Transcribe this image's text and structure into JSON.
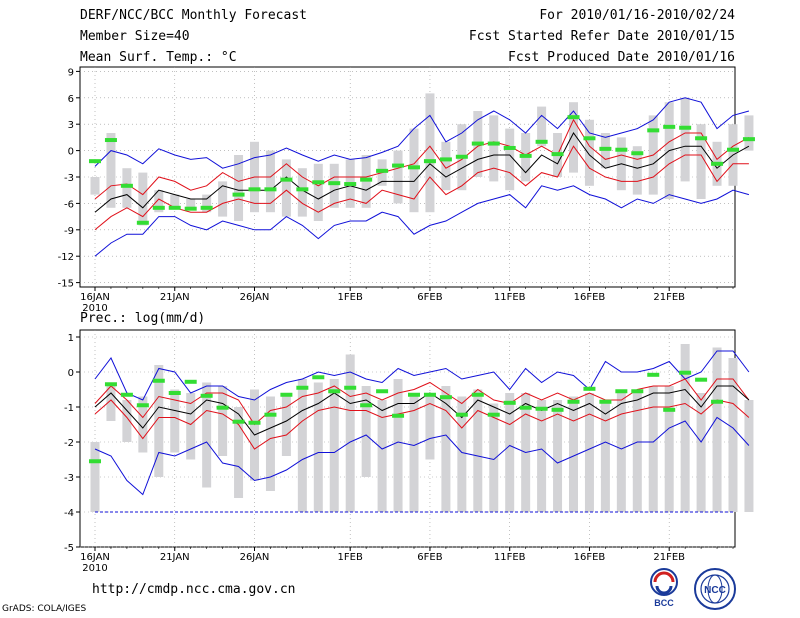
{
  "header": {
    "left_line1": "DERF/NCC/BCC Monthly Forecast",
    "left_line2": "Member Size=40",
    "left_line3": "Mean Surf. Temp.: °C",
    "right_line1": "For 2010/01/16-2010/02/24",
    "right_line2": "Fcst Started Refer Date 2010/01/15",
    "right_line3": "Fcst Produced Date 2010/01/16"
  },
  "footer": {
    "url": "http://cmdp.ncc.cma.gov.cn",
    "credit": "GrADS: COLA/IGES",
    "logo_bcc_text": "BCC",
    "logo_ncc_text": "NCC"
  },
  "colors": {
    "bars": "#d3d3d6",
    "ensemble_mean": "#000000",
    "spread_lines": "#e0101a",
    "extremes": "#1010d8",
    "observed": "#33dd33",
    "threshold": "#1010d8"
  },
  "chart_data": [
    {
      "type": "line",
      "title": "Mean Surf. Temp.: °C",
      "ylabel": "°C",
      "ylim": [
        -15.5,
        9.5
      ],
      "yticks": [
        9,
        6,
        3,
        0,
        -3,
        -6,
        -9,
        -12,
        -15
      ],
      "xticks": [
        {
          "day": 0,
          "label": "16JAN",
          "sub": "2010"
        },
        {
          "day": 5,
          "label": "21JAN"
        },
        {
          "day": 10,
          "label": "26JAN"
        },
        {
          "day": 16,
          "label": "1FEB"
        },
        {
          "day": 21,
          "label": "6FEB"
        },
        {
          "day": 26,
          "label": "11FEB"
        },
        {
          "day": 31,
          "label": "16FEB"
        },
        {
          "day": 36,
          "label": "21FEB"
        }
      ],
      "grid": true,
      "series": [
        {
          "name": "max",
          "values": [
            -1.8,
            0.0,
            -0.5,
            -1.5,
            0.2,
            -0.5,
            -1.0,
            -0.8,
            -2.0,
            -1.5,
            -0.8,
            -0.5,
            0.3,
            -0.5,
            -1.2,
            -0.5,
            -1.0,
            -0.8,
            -0.2,
            0.5,
            2.5,
            4.0,
            1.0,
            2.0,
            3.5,
            4.5,
            3.5,
            2.0,
            4.0,
            2.5,
            4.5,
            2.0,
            1.5,
            2.0,
            2.5,
            3.5,
            5.5,
            6.0,
            5.5,
            2.5,
            4.0,
            4.5
          ]
        },
        {
          "name": "upper",
          "values": [
            -5.5,
            -4.0,
            -3.8,
            -5.0,
            -3.0,
            -3.5,
            -4.5,
            -4.0,
            -2.5,
            -3.5,
            -3.0,
            -3.0,
            -1.5,
            -3.0,
            -4.0,
            -3.0,
            -3.0,
            -3.0,
            -2.5,
            -2.0,
            -1.5,
            0.5,
            -2.0,
            -1.0,
            0.5,
            1.0,
            0.5,
            -0.5,
            0.5,
            -0.5,
            3.5,
            0.5,
            -1.0,
            -0.5,
            -1.0,
            -0.5,
            1.0,
            2.0,
            2.0,
            -1.0,
            0.5,
            1.5
          ]
        },
        {
          "name": "mean",
          "values": [
            -7.0,
            -5.5,
            -5.0,
            -6.5,
            -4.5,
            -5.0,
            -5.5,
            -5.5,
            -4.0,
            -4.5,
            -4.5,
            -4.5,
            -3.0,
            -4.5,
            -5.5,
            -4.5,
            -4.0,
            -4.5,
            -3.5,
            -3.5,
            -3.5,
            -1.5,
            -3.0,
            -2.0,
            -1.0,
            -0.5,
            -0.5,
            -2.5,
            -0.5,
            -1.5,
            2.0,
            -0.5,
            -2.0,
            -1.5,
            -2.0,
            -1.5,
            0.0,
            0.5,
            0.5,
            -2.0,
            -0.5,
            0.5
          ]
        },
        {
          "name": "lower",
          "values": [
            -9.0,
            -7.5,
            -6.5,
            -7.5,
            -5.5,
            -6.5,
            -7.0,
            -7.0,
            -6.0,
            -5.5,
            -6.0,
            -6.0,
            -4.5,
            -6.0,
            -7.0,
            -6.0,
            -5.5,
            -6.0,
            -4.5,
            -5.0,
            -5.5,
            -3.0,
            -5.0,
            -4.0,
            -2.5,
            -2.0,
            -2.5,
            -4.0,
            -2.5,
            -3.0,
            0.5,
            -2.0,
            -3.0,
            -3.5,
            -3.5,
            -3.0,
            -1.5,
            -0.5,
            -0.5,
            -3.5,
            -1.5,
            -1.5
          ]
        },
        {
          "name": "min",
          "values": [
            -12.0,
            -10.5,
            -9.5,
            -9.5,
            -7.5,
            -7.5,
            -8.5,
            -9.0,
            -8.0,
            -8.5,
            -9.0,
            -9.0,
            -7.5,
            -8.5,
            -10.0,
            -8.5,
            -8.0,
            -8.0,
            -7.0,
            -7.5,
            -9.5,
            -8.5,
            -8.0,
            -7.0,
            -6.0,
            -5.5,
            -5.0,
            -6.5,
            -4.0,
            -4.5,
            -4.0,
            -5.0,
            -5.5,
            -6.5,
            -5.5,
            -6.0,
            -5.0,
            -5.5,
            -6.0,
            -5.5,
            -4.5,
            -5.0
          ]
        },
        {
          "name": "bar_top",
          "values": [
            -3.0,
            2.0,
            -2.0,
            -2.5,
            -4.5,
            -5.0,
            -5.5,
            -5.0,
            -3.5,
            -0.5,
            1.0,
            0.0,
            -1.0,
            -2.0,
            -1.5,
            -1.5,
            -1.0,
            -0.5,
            -1.0,
            0.0,
            2.5,
            6.5,
            1.0,
            3.0,
            4.5,
            4.0,
            2.5,
            2.0,
            5.0,
            2.0,
            5.5,
            3.5,
            2.0,
            1.5,
            0.5,
            4.0,
            5.5,
            6.0,
            3.0,
            1.0,
            3.0,
            4.0
          ]
        },
        {
          "name": "bar_bottom",
          "values": [
            -5.0,
            -6.5,
            -6.5,
            -8.5,
            -7.0,
            -6.5,
            -6.5,
            -7.0,
            -7.5,
            -8.0,
            -7.0,
            -7.0,
            -7.5,
            -7.5,
            -8.0,
            -6.5,
            -6.5,
            -6.5,
            -4.0,
            -6.0,
            -7.0,
            -7.0,
            -4.5,
            -4.5,
            -3.0,
            -3.5,
            -4.5,
            -3.5,
            0.5,
            -3.0,
            -2.5,
            -4.0,
            -2.0,
            -4.5,
            -5.0,
            -5.0,
            -5.5,
            -3.5,
            -5.5,
            -4.0,
            -4.0,
            0.0
          ]
        },
        {
          "name": "observed",
          "values": [
            -1.2,
            1.2,
            -4.0,
            -8.2,
            -6.5,
            -6.5,
            -6.6,
            -6.5,
            null,
            -5.0,
            -4.4,
            -4.4,
            -3.3,
            -4.4,
            -3.6,
            -3.7,
            -3.8,
            -3.3,
            -2.3,
            -1.7,
            -1.9,
            -1.2,
            -1.0,
            -0.7,
            0.8,
            0.8,
            0.3,
            -0.6,
            1.0,
            -0.4,
            3.8,
            1.4,
            0.2,
            0.1,
            -0.3,
            2.3,
            2.7,
            2.6,
            1.4,
            -1.5,
            0.1,
            1.3
          ]
        }
      ]
    },
    {
      "type": "line",
      "title": "Prec.: log(mm/d)",
      "ylabel": "log(mm/d)",
      "ylim": [
        -5.0,
        1.2
      ],
      "yticks": [
        1,
        0,
        -1,
        -2,
        -3,
        -4,
        -5
      ],
      "xticks": [
        {
          "day": 0,
          "label": "16JAN",
          "sub": "2010"
        },
        {
          "day": 5,
          "label": "21JAN"
        },
        {
          "day": 10,
          "label": "26JAN"
        },
        {
          "day": 16,
          "label": "1FEB"
        },
        {
          "day": 21,
          "label": "6FEB"
        },
        {
          "day": 26,
          "label": "11FEB"
        },
        {
          "day": 31,
          "label": "16FEB"
        },
        {
          "day": 36,
          "label": "21FEB"
        }
      ],
      "grid": true,
      "threshold": -4.0,
      "series": [
        {
          "name": "max",
          "values": [
            -0.2,
            0.4,
            -0.6,
            -0.8,
            0.1,
            0.0,
            -0.6,
            -0.4,
            -0.4,
            -0.7,
            -0.8,
            -0.5,
            -0.3,
            -0.2,
            0.0,
            -0.1,
            0.0,
            -0.2,
            -0.3,
            0.1,
            -0.1,
            0.0,
            0.1,
            -0.2,
            -0.1,
            0.0,
            -0.5,
            0.1,
            -0.3,
            0.0,
            -0.1,
            -0.5,
            0.3,
            0.0,
            0.0,
            0.1,
            0.3,
            -0.2,
            0.0,
            0.6,
            0.6,
            0.0
          ]
        },
        {
          "name": "upper",
          "values": [
            -0.9,
            -0.4,
            -0.8,
            -1.3,
            -0.7,
            -0.8,
            -0.9,
            -0.6,
            -0.6,
            -0.8,
            -1.5,
            -1.1,
            -1.0,
            -0.7,
            -0.6,
            -0.4,
            -0.7,
            -0.6,
            -0.8,
            -0.6,
            -0.5,
            -0.3,
            -0.6,
            -0.9,
            -0.5,
            -0.8,
            -0.9,
            -0.6,
            -0.8,
            -0.6,
            -0.8,
            -0.6,
            -0.8,
            -0.8,
            -0.5,
            -0.4,
            -0.4,
            -0.2,
            -0.8,
            -0.2,
            -0.2,
            -0.8
          ]
        },
        {
          "name": "mean",
          "values": [
            -1.0,
            -0.6,
            -1.1,
            -1.6,
            -1.0,
            -1.1,
            -1.2,
            -0.8,
            -0.9,
            -1.2,
            -1.8,
            -1.6,
            -1.4,
            -1.1,
            -0.9,
            -0.6,
            -0.9,
            -0.8,
            -1.1,
            -0.9,
            -0.9,
            -0.6,
            -0.9,
            -1.3,
            -0.8,
            -1.0,
            -1.2,
            -0.9,
            -1.1,
            -0.9,
            -1.1,
            -0.9,
            -1.2,
            -0.9,
            -0.8,
            -0.6,
            -0.6,
            -0.5,
            -1.0,
            -0.4,
            -0.4,
            -0.8
          ]
        },
        {
          "name": "lower",
          "values": [
            -1.2,
            -0.8,
            -1.3,
            -1.9,
            -1.3,
            -1.3,
            -1.5,
            -1.1,
            -1.2,
            -1.5,
            -2.2,
            -1.9,
            -1.8,
            -1.4,
            -1.1,
            -1.0,
            -1.1,
            -1.1,
            -1.3,
            -1.2,
            -1.1,
            -0.9,
            -1.1,
            -1.6,
            -1.1,
            -1.3,
            -1.5,
            -1.2,
            -1.4,
            -1.2,
            -1.4,
            -1.2,
            -1.4,
            -1.2,
            -1.1,
            -1.0,
            -1.0,
            -0.9,
            -1.2,
            -0.8,
            -0.9,
            -1.3
          ]
        },
        {
          "name": "min",
          "values": [
            -2.2,
            -2.4,
            -3.1,
            -3.5,
            -2.3,
            -2.4,
            -2.2,
            -2.0,
            -2.6,
            -2.7,
            -3.1,
            -3.0,
            -2.8,
            -2.5,
            -2.3,
            -2.3,
            -2.0,
            -1.8,
            -2.2,
            -2.0,
            -2.1,
            -1.9,
            -1.8,
            -2.3,
            -2.4,
            -2.5,
            -2.1,
            -2.3,
            -2.2,
            -2.6,
            -2.4,
            -2.2,
            -2.0,
            -2.2,
            -2.0,
            -2.0,
            -1.6,
            -1.4,
            -2.0,
            -1.3,
            -1.6,
            -2.1
          ]
        },
        {
          "name": "bar_top",
          "values": [
            -2.0,
            -0.3,
            -0.8,
            -0.7,
            0.2,
            -0.5,
            -0.6,
            -0.3,
            -0.4,
            -1.0,
            -0.5,
            -0.7,
            -0.7,
            -0.2,
            -0.3,
            -0.2,
            0.5,
            -0.4,
            -0.8,
            -0.2,
            -0.6,
            -0.6,
            -0.4,
            -0.7,
            -0.5,
            -0.9,
            -0.6,
            -0.6,
            -0.8,
            -0.8,
            -0.7,
            -0.6,
            -0.9,
            -0.5,
            -0.5,
            -0.4,
            -0.4,
            0.8,
            -0.6,
            0.7,
            0.4,
            -0.8
          ]
        },
        {
          "name": "bar_bottom",
          "values": [
            -4.0,
            -1.4,
            -2.0,
            -2.3,
            -3.0,
            -2.3,
            -2.5,
            -3.3,
            -2.4,
            -3.6,
            -3.1,
            -3.4,
            -2.4,
            -4.0,
            -4.0,
            -4.0,
            -4.0,
            -3.0,
            -4.0,
            -4.0,
            -4.0,
            -2.5,
            -4.0,
            -4.0,
            -4.0,
            -4.0,
            -4.0,
            -4.0,
            -4.0,
            -4.0,
            -4.0,
            -4.0,
            -4.0,
            -4.0,
            -4.0,
            -4.0,
            -4.0,
            -4.0,
            -4.0,
            -4.0,
            -4.0,
            -4.0
          ]
        },
        {
          "name": "observed",
          "values": [
            -2.55,
            -0.35,
            -0.65,
            -0.95,
            -0.25,
            -0.6,
            -0.28,
            -0.68,
            -1.02,
            -1.42,
            -1.45,
            -1.22,
            -0.65,
            -0.45,
            -0.15,
            -0.55,
            -0.45,
            -0.95,
            -0.55,
            -1.25,
            -0.65,
            -0.65,
            -0.72,
            -1.22,
            -0.65,
            -1.22,
            -0.88,
            -1.02,
            -1.05,
            -1.08,
            -0.85,
            -0.48,
            -0.85,
            -0.55,
            -0.55,
            -0.08,
            -1.08,
            -0.02,
            -0.22,
            -0.85,
            null,
            null
          ]
        }
      ]
    }
  ]
}
